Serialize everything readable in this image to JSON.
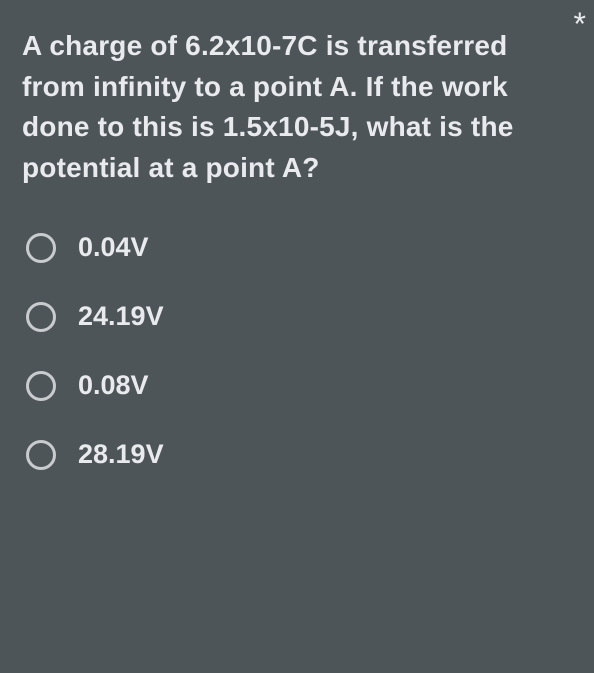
{
  "required_marker": "*",
  "question_text": "A charge of 6.2x10-7C is transferred from infinity to a point A. If the work done to this is 1.5x10-5J, what is the potential at a point A?",
  "options": [
    {
      "label": "0.04V"
    },
    {
      "label": "24.19V"
    },
    {
      "label": "0.08V"
    },
    {
      "label": "28.19V"
    }
  ],
  "colors": {
    "background": "#4e5559",
    "text": "#e8eaed",
    "radio_border": "#c9ccce"
  },
  "typography": {
    "question_fontsize": 28,
    "question_weight": 700,
    "option_fontsize": 27,
    "option_weight": 700
  }
}
